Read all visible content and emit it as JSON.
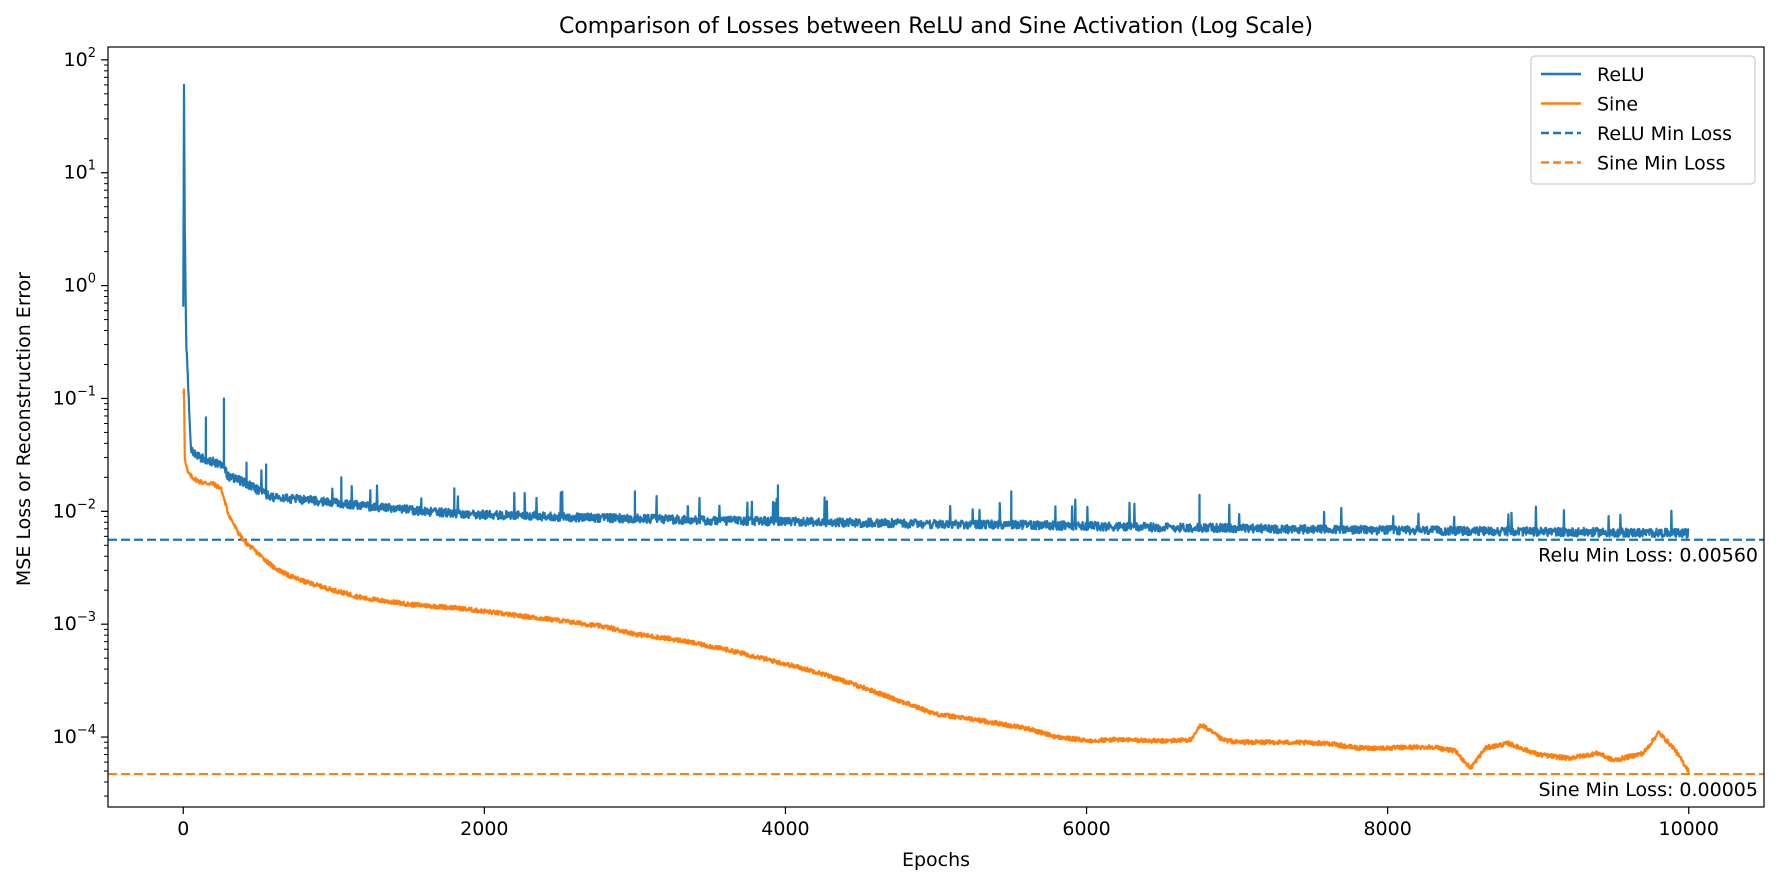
{
  "chart_data": {
    "type": "line",
    "title": "Comparison of Losses between ReLU and Sine Activation (Log Scale)",
    "xlabel": "Epochs",
    "ylabel": "MSE Loss or Reconstruction Error",
    "xlim": [
      -500,
      10500
    ],
    "ylim": [
      2.4e-05,
      130
    ],
    "yscale": "log",
    "grid": false,
    "legend_position": "top-right",
    "x_ticks": [
      {
        "value": 0,
        "label": "0"
      },
      {
        "value": 2000,
        "label": "2000"
      },
      {
        "value": 4000,
        "label": "4000"
      },
      {
        "value": 6000,
        "label": "6000"
      },
      {
        "value": 8000,
        "label": "8000"
      },
      {
        "value": 10000,
        "label": "10000"
      }
    ],
    "y_ticks": [
      {
        "exp": 2,
        "base": "10",
        "exponent": "2"
      },
      {
        "exp": 1,
        "base": "10",
        "exponent": "1"
      },
      {
        "exp": 0,
        "base": "10",
        "exponent": "0"
      },
      {
        "exp": -1,
        "base": "10",
        "exponent": "−1"
      },
      {
        "exp": -2,
        "base": "10",
        "exponent": "−2"
      },
      {
        "exp": -3,
        "base": "10",
        "exponent": "−3"
      },
      {
        "exp": -4,
        "base": "10",
        "exponent": "−4"
      }
    ],
    "series": [
      {
        "name": "ReLU",
        "color": "#1f77b4",
        "style": "solid",
        "x": [
          0,
          5,
          10,
          20,
          50,
          100,
          150,
          200,
          260,
          300,
          400,
          500,
          600,
          800,
          1000,
          1200,
          1400,
          1600,
          1800,
          2000,
          2300,
          2600,
          3000,
          3500,
          4000,
          4500,
          5000,
          5500,
          6000,
          6500,
          7000,
          7500,
          8000,
          8500,
          9000,
          9500,
          10000
        ],
        "y": [
          0.65,
          60,
          3,
          0.3,
          0.035,
          0.03,
          0.028,
          0.027,
          0.026,
          0.02,
          0.018,
          0.015,
          0.013,
          0.0125,
          0.0118,
          0.011,
          0.0105,
          0.0098,
          0.0095,
          0.0092,
          0.009,
          0.0087,
          0.0085,
          0.0082,
          0.008,
          0.0078,
          0.0076,
          0.0075,
          0.0073,
          0.0071,
          0.007,
          0.0068,
          0.0067,
          0.0066,
          0.0065,
          0.0064,
          0.0063
        ],
        "spikes": [
          {
            "x": 150,
            "y": 0.068
          },
          {
            "x": 270,
            "y": 0.1
          },
          {
            "x": 420,
            "y": 0.027
          },
          {
            "x": 550,
            "y": 0.026
          },
          {
            "x": 1050,
            "y": 0.02
          },
          {
            "x": 1800,
            "y": 0.016
          },
          {
            "x": 3000,
            "y": 0.015
          },
          {
            "x": 3950,
            "y": 0.017
          },
          {
            "x": 5500,
            "y": 0.015
          },
          {
            "x": 6750,
            "y": 0.014
          }
        ]
      },
      {
        "name": "Sine",
        "color": "#ff7f0e",
        "style": "solid",
        "x": [
          0,
          5,
          10,
          30,
          60,
          100,
          150,
          200,
          250,
          300,
          350,
          400,
          500,
          600,
          700,
          800,
          1000,
          1200,
          1500,
          1800,
          2000,
          2200,
          2500,
          2800,
          3000,
          3300,
          3600,
          3900,
          4200,
          4500,
          4800,
          5000,
          5300,
          5600,
          5800,
          6000,
          6200,
          6500,
          6700,
          6760,
          6900,
          7000,
          7300,
          7600,
          7800,
          8000,
          8300,
          8450,
          8550,
          8650,
          8800,
          9000,
          9200,
          9400,
          9500,
          9700,
          9800,
          9900,
          10000
        ],
        "y": [
          0.11,
          0.12,
          0.03,
          0.022,
          0.02,
          0.0185,
          0.0178,
          0.0175,
          0.016,
          0.0095,
          0.007,
          0.0055,
          0.0042,
          0.0032,
          0.0027,
          0.0024,
          0.002,
          0.0017,
          0.0015,
          0.0014,
          0.0013,
          0.0012,
          0.00108,
          0.00095,
          0.00082,
          0.00072,
          0.0006,
          0.00048,
          0.00038,
          0.00028,
          0.0002,
          0.00016,
          0.00014,
          0.00012,
          0.0001,
          9.3e-05,
          9.5e-05,
          9.2e-05,
          9.5e-05,
          0.00013,
          9.5e-05,
          9e-05,
          9e-05,
          8.8e-05,
          8e-05,
          8e-05,
          8.2e-05,
          7.5e-05,
          5.3e-05,
          8e-05,
          8.8e-05,
          7e-05,
          6.5e-05,
          7.2e-05,
          6.2e-05,
          7.2e-05,
          0.00011,
          8e-05,
          5e-05
        ]
      }
    ],
    "reference_lines": [
      {
        "name": "ReLU Min Loss",
        "value": 0.0056,
        "color": "#1f77b4",
        "style": "dashed",
        "annotation": "Relu Min Loss: 0.00560"
      },
      {
        "name": "Sine Min Loss",
        "value": 4.7e-05,
        "color": "#ff7f0e",
        "style": "dashed",
        "annotation": "Sine Min Loss: 0.00005"
      }
    ],
    "legend": [
      {
        "label": "ReLU",
        "color": "#1f77b4",
        "style": "solid"
      },
      {
        "label": "Sine",
        "color": "#ff7f0e",
        "style": "solid"
      },
      {
        "label": "ReLU Min Loss",
        "color": "#1f77b4",
        "style": "dashed"
      },
      {
        "label": "Sine Min Loss",
        "color": "#ff7f0e",
        "style": "dashed"
      }
    ]
  }
}
